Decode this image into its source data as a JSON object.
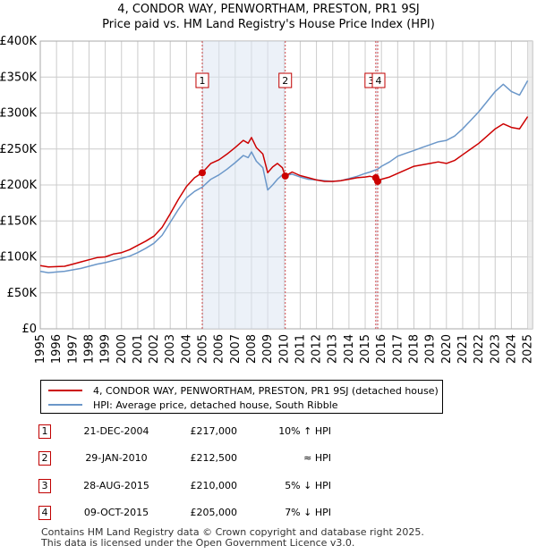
{
  "title_line1": "4, CONDOR WAY, PENWORTHAM, PRESTON, PR1 9SJ",
  "title_line2": "Price paid vs. HM Land Registry's House Price Index (HPI)",
  "colors": {
    "property": "#cc0000",
    "hpi": "#6b97c9",
    "marker": "#c00000",
    "shade": "#dde6f2"
  },
  "chart_data": {
    "type": "line",
    "ylim": [
      0,
      400000
    ],
    "xlim": [
      1995.0,
      2025.3
    ],
    "y_ticks": [
      {
        "value": 0,
        "label": "£0"
      },
      {
        "value": 50000,
        "label": "£50K"
      },
      {
        "value": 100000,
        "label": "£100K"
      },
      {
        "value": 150000,
        "label": "£150K"
      },
      {
        "value": 200000,
        "label": "£200K"
      },
      {
        "value": 250000,
        "label": "£250K"
      },
      {
        "value": 300000,
        "label": "£300K"
      },
      {
        "value": 350000,
        "label": "£350K"
      },
      {
        "value": 400000,
        "label": "£400K"
      }
    ],
    "x_ticks": [
      "1995",
      "1996",
      "1997",
      "1998",
      "1999",
      "2000",
      "2001",
      "2002",
      "2003",
      "2004",
      "2005",
      "2006",
      "2007",
      "2008",
      "2009",
      "2010",
      "2011",
      "2012",
      "2013",
      "2014",
      "2015",
      "2016",
      "2017",
      "2018",
      "2019",
      "2020",
      "2021",
      "2022",
      "2023",
      "2024",
      "2025"
    ],
    "series": [
      {
        "name": "4, CONDOR WAY, PENWORTHAM, PRESTON, PR1 9SJ (detached house)",
        "color": "#cc0000",
        "x": [
          1995.0,
          1995.5,
          1996.0,
          1996.5,
          1997.0,
          1997.5,
          1998.0,
          1998.5,
          1999.0,
          1999.5,
          2000.0,
          2000.5,
          2001.0,
          2001.5,
          2002.0,
          2002.5,
          2003.0,
          2003.5,
          2004.0,
          2004.5,
          2004.97,
          2005.5,
          2006.0,
          2006.5,
          2007.0,
          2007.5,
          2007.8,
          2008.0,
          2008.3,
          2008.7,
          2009.0,
          2009.3,
          2009.6,
          2009.9,
          2010.08,
          2010.5,
          2011.0,
          2011.5,
          2012.0,
          2012.5,
          2013.0,
          2013.5,
          2014.0,
          2014.5,
          2015.0,
          2015.3,
          2015.65,
          2015.77,
          2016.0,
          2016.5,
          2017.0,
          2017.5,
          2018.0,
          2018.5,
          2019.0,
          2019.5,
          2020.0,
          2020.5,
          2021.0,
          2021.5,
          2022.0,
          2022.5,
          2023.0,
          2023.5,
          2024.0,
          2024.5,
          2025.0
        ],
        "values": [
          88000,
          86000,
          86500,
          87000,
          90000,
          93000,
          96000,
          99000,
          100000,
          104000,
          106000,
          110000,
          116000,
          122000,
          129000,
          141000,
          160000,
          180000,
          198000,
          210000,
          217000,
          230000,
          235000,
          243000,
          252000,
          262000,
          258000,
          266000,
          252000,
          243000,
          217000,
          225000,
          230000,
          224000,
          212500,
          218000,
          213000,
          210000,
          207000,
          205000,
          205000,
          206000,
          208000,
          210000,
          211000,
          212000,
          210000,
          205000,
          208000,
          211000,
          216000,
          221000,
          226000,
          228000,
          230000,
          232000,
          230000,
          234000,
          242000,
          250000,
          258000,
          268000,
          278000,
          285000,
          280000,
          278000,
          295000
        ]
      },
      {
        "name": "HPI: Average price, detached house, South Ribble",
        "color": "#6b97c9",
        "x": [
          1995.0,
          1995.5,
          1996.0,
          1996.5,
          1997.0,
          1997.5,
          1998.0,
          1998.5,
          1999.0,
          1999.5,
          2000.0,
          2000.5,
          2001.0,
          2001.5,
          2002.0,
          2002.5,
          2003.0,
          2003.5,
          2004.0,
          2004.5,
          2004.97,
          2005.5,
          2006.0,
          2006.5,
          2007.0,
          2007.5,
          2007.8,
          2008.0,
          2008.3,
          2008.7,
          2009.0,
          2009.3,
          2009.6,
          2009.9,
          2010.08,
          2010.5,
          2011.0,
          2011.5,
          2012.0,
          2012.5,
          2013.0,
          2013.5,
          2014.0,
          2014.5,
          2015.0,
          2015.3,
          2015.65,
          2015.77,
          2016.0,
          2016.5,
          2017.0,
          2017.5,
          2018.0,
          2018.5,
          2019.0,
          2019.5,
          2020.0,
          2020.5,
          2021.0,
          2021.5,
          2022.0,
          2022.5,
          2023.0,
          2023.5,
          2024.0,
          2024.5,
          2025.0
        ],
        "values": [
          80000,
          78000,
          79000,
          80000,
          82000,
          84000,
          87000,
          90000,
          92000,
          95000,
          98000,
          101000,
          106000,
          112000,
          119000,
          130000,
          148000,
          166000,
          182000,
          191000,
          197000,
          208000,
          214000,
          222000,
          231000,
          241000,
          238000,
          246000,
          233000,
          224000,
          193000,
          200000,
          208000,
          214000,
          213000,
          215000,
          211000,
          208000,
          207000,
          206000,
          205000,
          206000,
          209000,
          212000,
          216000,
          218000,
          221000,
          222000,
          226000,
          232000,
          240000,
          244000,
          248000,
          252000,
          256000,
          260000,
          262000,
          268000,
          278000,
          290000,
          302000,
          316000,
          330000,
          340000,
          330000,
          325000,
          345000
        ]
      }
    ],
    "sales": [
      {
        "num": "1",
        "x": 2004.97,
        "price": 217000,
        "date": "21-DEC-2004",
        "price_label": "£217,000",
        "hpi_label": "10% ↑ HPI"
      },
      {
        "num": "2",
        "x": 2010.08,
        "price": 212500,
        "date": "29-JAN-2010",
        "price_label": "£212,500",
        "hpi_label": "≈ HPI"
      },
      {
        "num": "3",
        "x": 2015.65,
        "price": 210000,
        "date": "28-AUG-2015",
        "price_label": "£210,000",
        "hpi_label": "5% ↓ HPI"
      },
      {
        "num": "4",
        "x": 2015.77,
        "price": 205000,
        "date": "09-OCT-2015",
        "price_label": "£205,000",
        "hpi_label": "7% ↓ HPI"
      }
    ]
  },
  "legend": {
    "property": "4, CONDOR WAY, PENWORTHAM, PRESTON, PR1 9SJ (detached house)",
    "hpi": "HPI: Average price, detached house, South Ribble"
  },
  "footer_line1": "Contains HM Land Registry data © Crown copyright and database right 2025.",
  "footer_line2": "This data is licensed under the Open Government Licence v3.0."
}
